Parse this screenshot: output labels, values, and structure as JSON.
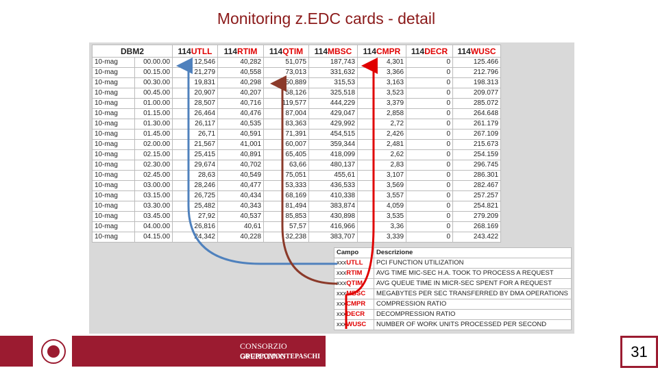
{
  "title": "Monitoring z.EDC cards - detail",
  "table": {
    "header": {
      "first": "DBM2",
      "columns": [
        {
          "prefix": "114",
          "code": "UTLL"
        },
        {
          "prefix": "114",
          "code": "RTIM"
        },
        {
          "prefix": "114",
          "code": "QTIM"
        },
        {
          "prefix": "114",
          "code": "MBSC"
        },
        {
          "prefix": "114",
          "code": "CMPR"
        },
        {
          "prefix": "114",
          "code": "DECR"
        },
        {
          "prefix": "114",
          "code": "WUSC"
        }
      ]
    },
    "rows": [
      [
        "10-mag",
        "00.00.00",
        "12,546",
        "40,282",
        "51,075",
        "187,743",
        "4,301",
        "0",
        "125.466"
      ],
      [
        "10-mag",
        "00.15.00",
        "21,279",
        "40,558",
        "73,013",
        "331,632",
        "3,366",
        "0",
        "212.796"
      ],
      [
        "10-mag",
        "00.30.00",
        "19,831",
        "40,298",
        "50,889",
        "315,53",
        "3,163",
        "0",
        "198.313"
      ],
      [
        "10-mag",
        "00.45.00",
        "20,907",
        "40,207",
        "58,126",
        "325,518",
        "3,523",
        "0",
        "209.077"
      ],
      [
        "10-mag",
        "01.00.00",
        "28,507",
        "40,716",
        "119,577",
        "444,229",
        "3,379",
        "0",
        "285.072"
      ],
      [
        "10-mag",
        "01.15.00",
        "26,464",
        "40,476",
        "87,004",
        "429,047",
        "2,858",
        "0",
        "264.648"
      ],
      [
        "10-mag",
        "01.30.00",
        "26,117",
        "40,535",
        "83,363",
        "429,992",
        "2,72",
        "0",
        "261.179"
      ],
      [
        "10-mag",
        "01.45.00",
        "26,71",
        "40,591",
        "71,391",
        "454,515",
        "2,426",
        "0",
        "267.109"
      ],
      [
        "10-mag",
        "02.00.00",
        "21,567",
        "41,001",
        "60,007",
        "359,344",
        "2,481",
        "0",
        "215.673"
      ],
      [
        "10-mag",
        "02.15.00",
        "25,415",
        "40,891",
        "65,405",
        "418,099",
        "2,62",
        "0",
        "254.159"
      ],
      [
        "10-mag",
        "02.30.00",
        "29,674",
        "40,702",
        "63,66",
        "480,137",
        "2,83",
        "0",
        "296.745"
      ],
      [
        "10-mag",
        "02.45.00",
        "28,63",
        "40,549",
        "75,051",
        "455,61",
        "3,107",
        "0",
        "286.301"
      ],
      [
        "10-mag",
        "03.00.00",
        "28,246",
        "40,477",
        "53,333",
        "436,533",
        "3,569",
        "0",
        "282.467"
      ],
      [
        "10-mag",
        "03.15.00",
        "26,725",
        "40,434",
        "68,169",
        "410,338",
        "3,557",
        "0",
        "257.257"
      ],
      [
        "10-mag",
        "03.30.00",
        "25,482",
        "40,343",
        "81,494",
        "383,874",
        "4,059",
        "0",
        "254.821"
      ],
      [
        "10-mag",
        "03.45.00",
        "27,92",
        "40,537",
        "85,853",
        "430,898",
        "3,535",
        "0",
        "279.209"
      ],
      [
        "10-mag",
        "04.00.00",
        "26,816",
        "40,61",
        "57,57",
        "416,966",
        "3,36",
        "0",
        "268.169"
      ],
      [
        "10-mag",
        "04.15.00",
        "24,342",
        "40,228",
        "32,238",
        "383,707",
        "3,339",
        "0",
        "243.422"
      ]
    ]
  },
  "legend": {
    "header": [
      "Campo",
      "Descrizione"
    ],
    "rows": [
      {
        "prefix": "xxx",
        "code": "UTLL",
        "description": "PCI FUNCTION UTILIZATION"
      },
      {
        "prefix": "xxx",
        "code": "RTIM",
        "description": "AVG TIME MIC-SEC H.A. TOOK TO PROCESS A REQUEST"
      },
      {
        "prefix": "xxx",
        "code": "QTIM",
        "description": "AVG QUEUE TIME IN MICR-SEC SPENT FOR A REQUEST"
      },
      {
        "prefix": "xxx",
        "code": "MBSC",
        "description": "MEGABYTES PER SEC TRANSFERRED BY DMA OPERATIONS"
      },
      {
        "prefix": "xxx",
        "code": "CMPR",
        "description": "COMPRESSION RATIO"
      },
      {
        "prefix": "xxx",
        "code": "DECR",
        "description": "DECOMPRESSION RATIO"
      },
      {
        "prefix": "xxx",
        "code": "WUSC",
        "description": "NUMBER OF WORK UNITS PROCESSED PER SECOND"
      }
    ]
  },
  "footer": {
    "brand": "CONSORZIO OPERATIVO",
    "group": "GRUPPOMONTEPASCHI",
    "page": "31"
  }
}
